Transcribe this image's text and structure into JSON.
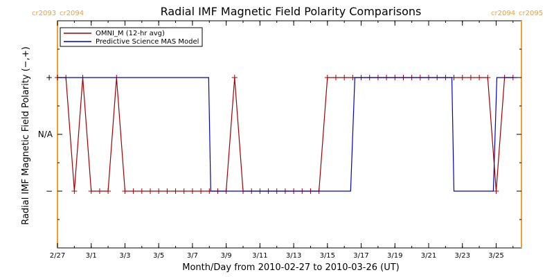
{
  "chart_data": {
    "type": "line",
    "title": "Radial IMF Magnetic Field Polarity Comparisons",
    "xlabel": "Month/Day from 2010-02-27 to 2010-03-26 (UT)",
    "ylabel": "Radial IMF Magnetic Field Polarity (−,+)",
    "x_unit": "UT date",
    "xlim": [
      "2010-02-27T00:00",
      "2010-03-26T12:00"
    ],
    "y_categories": [
      "−",
      "N/A",
      "+"
    ],
    "yticks": [
      {
        "value": 1,
        "label": "+"
      },
      {
        "value": 0,
        "label": "N/A"
      },
      {
        "value": -1,
        "label": "−"
      }
    ],
    "ylim": [
      -2,
      2
    ],
    "xticks": [
      "2/27",
      "3/1",
      "3/3",
      "3/5",
      "3/7",
      "3/9",
      "3/11",
      "3/13",
      "3/15",
      "3/17",
      "3/19",
      "3/21",
      "3/23",
      "3/25"
    ],
    "xtick_dates": [
      "2010-02-27",
      "2010-03-01",
      "2010-03-03",
      "2010-03-05",
      "2010-03-07",
      "2010-03-09",
      "2010-03-11",
      "2010-03-13",
      "2010-03-15",
      "2010-03-17",
      "2010-03-19",
      "2010-03-21",
      "2010-03-23",
      "2010-03-25"
    ],
    "carrington_markers": [
      {
        "date": "2010-02-27T00:00",
        "left_label": "cr2093",
        "right_label": "cr2094",
        "side": "left"
      },
      {
        "date": "2010-03-26T12:00",
        "left_label": "cr2094",
        "right_label": "cr2095",
        "side": "right"
      }
    ],
    "legend_placement": "top-left",
    "grid": false,
    "series": [
      {
        "name": "OMNI_M (12-hr avg)",
        "color": "#a00000",
        "marker": "plus",
        "points": [
          [
            "2010-02-27T00:00",
            1
          ],
          [
            "2010-02-27T12:00",
            1
          ],
          [
            "2010-02-28T00:00",
            -1
          ],
          [
            "2010-02-28T12:00",
            1
          ],
          [
            "2010-03-01T00:00",
            -1
          ],
          [
            "2010-03-01T12:00",
            -1
          ],
          [
            "2010-03-02T00:00",
            -1
          ],
          [
            "2010-03-02T12:00",
            1
          ],
          [
            "2010-03-03T00:00",
            -1
          ],
          [
            "2010-03-03T12:00",
            -1
          ],
          [
            "2010-03-04T00:00",
            -1
          ],
          [
            "2010-03-04T12:00",
            -1
          ],
          [
            "2010-03-05T00:00",
            -1
          ],
          [
            "2010-03-05T12:00",
            -1
          ],
          [
            "2010-03-06T00:00",
            -1
          ],
          [
            "2010-03-06T12:00",
            -1
          ],
          [
            "2010-03-07T00:00",
            -1
          ],
          [
            "2010-03-07T12:00",
            -1
          ],
          [
            "2010-03-08T00:00",
            -1
          ],
          [
            "2010-03-08T12:00",
            -1
          ],
          [
            "2010-03-09T00:00",
            -1
          ],
          [
            "2010-03-09T12:00",
            1
          ],
          [
            "2010-03-10T00:00",
            -1
          ],
          [
            "2010-03-10T12:00",
            -1
          ],
          [
            "2010-03-11T00:00",
            -1
          ],
          [
            "2010-03-11T12:00",
            -1
          ],
          [
            "2010-03-12T00:00",
            -1
          ],
          [
            "2010-03-12T12:00",
            -1
          ],
          [
            "2010-03-13T00:00",
            -1
          ],
          [
            "2010-03-13T12:00",
            -1
          ],
          [
            "2010-03-14T00:00",
            -1
          ],
          [
            "2010-03-14T12:00",
            -1
          ],
          [
            "2010-03-15T00:00",
            1
          ],
          [
            "2010-03-15T12:00",
            1
          ],
          [
            "2010-03-16T00:00",
            1
          ],
          [
            "2010-03-16T12:00",
            1
          ],
          [
            "2010-03-17T00:00",
            1
          ],
          [
            "2010-03-17T12:00",
            1
          ],
          [
            "2010-03-18T00:00",
            1
          ],
          [
            "2010-03-18T12:00",
            1
          ],
          [
            "2010-03-19T00:00",
            1
          ],
          [
            "2010-03-19T12:00",
            1
          ],
          [
            "2010-03-20T00:00",
            1
          ],
          [
            "2010-03-20T12:00",
            1
          ],
          [
            "2010-03-21T00:00",
            1
          ],
          [
            "2010-03-21T12:00",
            1
          ],
          [
            "2010-03-22T00:00",
            1
          ],
          [
            "2010-03-22T12:00",
            1
          ],
          [
            "2010-03-23T00:00",
            1
          ],
          [
            "2010-03-23T12:00",
            1
          ],
          [
            "2010-03-24T00:00",
            1
          ],
          [
            "2010-03-24T12:00",
            1
          ],
          [
            "2010-03-25T00:00",
            -1
          ],
          [
            "2010-03-25T12:00",
            1
          ],
          [
            "2010-03-26T00:00",
            1
          ]
        ]
      },
      {
        "name": "Predictive Science MAS Model",
        "color": "#0000c0",
        "marker": "none",
        "points": [
          [
            "2010-02-27T00:00",
            1
          ],
          [
            "2010-03-07T23:00",
            1
          ],
          [
            "2010-03-08T02:00",
            -1
          ],
          [
            "2010-03-16T09:00",
            -1
          ],
          [
            "2010-03-16T15:00",
            1
          ],
          [
            "2010-03-22T09:00",
            1
          ],
          [
            "2010-03-22T12:00",
            -1
          ],
          [
            "2010-03-24T20:00",
            -1
          ],
          [
            "2010-03-25T01:00",
            1
          ],
          [
            "2010-03-26T06:00",
            1
          ]
        ]
      }
    ]
  }
}
